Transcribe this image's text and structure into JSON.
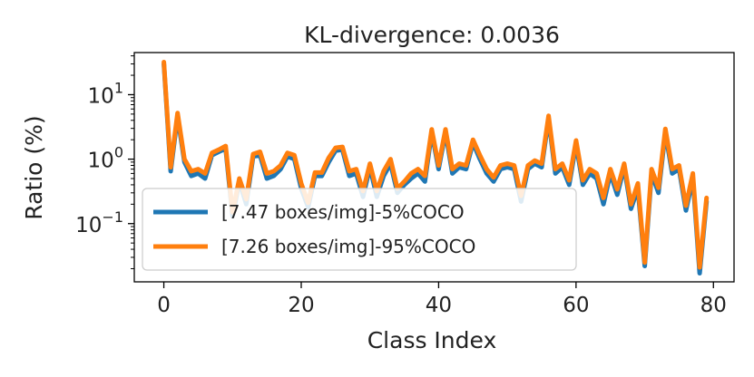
{
  "chart_data": {
    "type": "line",
    "title": "KL-divergence: 0.0036",
    "xlabel": "Class Index",
    "ylabel": "Ratio (%)",
    "xlim": [
      -4.3,
      83
    ],
    "ylim": [
      0.0125,
      45
    ],
    "yscale": "log",
    "grid": false,
    "legend_position": "lower-left",
    "xticks": [
      0,
      20,
      40,
      60,
      80
    ],
    "xtick_labels": [
      "0",
      "20",
      "40",
      "60",
      "80"
    ],
    "yticks": [
      0.1,
      1,
      10
    ],
    "ytick_labels": [
      {
        "base": "10",
        "exp": "−1"
      },
      {
        "base": "10",
        "exp": "0"
      },
      {
        "base": "10",
        "exp": "1"
      }
    ],
    "x": [
      0,
      1,
      2,
      3,
      4,
      5,
      6,
      7,
      8,
      9,
      10,
      11,
      12,
      13,
      14,
      15,
      16,
      17,
      18,
      19,
      20,
      21,
      22,
      23,
      24,
      25,
      26,
      27,
      28,
      29,
      30,
      31,
      32,
      33,
      34,
      35,
      36,
      37,
      38,
      39,
      40,
      41,
      42,
      43,
      44,
      45,
      46,
      47,
      48,
      49,
      50,
      51,
      52,
      53,
      54,
      55,
      56,
      57,
      58,
      59,
      60,
      61,
      62,
      63,
      64,
      65,
      66,
      67,
      68,
      69,
      70,
      71,
      72,
      73,
      74,
      75,
      76,
      77,
      78,
      79
    ],
    "series": [
      {
        "name": "[7.47 boxes/img]-5%COCO",
        "color": "#1f77b4",
        "values": [
          30,
          0.65,
          4.6,
          0.9,
          0.55,
          0.6,
          0.5,
          1.15,
          1.3,
          1.45,
          0.13,
          0.45,
          0.2,
          1.1,
          1.15,
          0.5,
          0.55,
          0.7,
          1.1,
          1.0,
          0.35,
          0.18,
          0.55,
          0.55,
          0.9,
          1.35,
          1.4,
          0.55,
          0.6,
          0.26,
          0.75,
          0.26,
          0.55,
          0.85,
          0.3,
          0.4,
          0.5,
          0.6,
          0.45,
          2.6,
          0.7,
          2.6,
          0.6,
          0.75,
          0.7,
          1.8,
          1.0,
          0.6,
          0.45,
          0.7,
          0.75,
          0.7,
          0.22,
          0.7,
          0.85,
          0.75,
          4.2,
          0.6,
          0.75,
          0.4,
          1.7,
          0.4,
          0.6,
          0.5,
          0.2,
          0.6,
          0.28,
          0.75,
          0.17,
          0.35,
          0.022,
          0.6,
          0.3,
          2.6,
          0.6,
          0.7,
          0.16,
          0.5,
          0.017,
          0.22
        ]
      },
      {
        "name": "[7.26 boxes/img]-95%COCO",
        "color": "#ff7f0e",
        "values": [
          32,
          0.75,
          5.2,
          1.0,
          0.65,
          0.7,
          0.6,
          1.25,
          1.4,
          1.6,
          0.15,
          0.5,
          0.24,
          1.2,
          1.3,
          0.6,
          0.65,
          0.8,
          1.25,
          1.15,
          0.42,
          0.21,
          0.62,
          0.62,
          1.05,
          1.5,
          1.55,
          0.65,
          0.7,
          0.32,
          0.85,
          0.32,
          0.65,
          1.0,
          0.35,
          0.45,
          0.6,
          0.7,
          0.55,
          2.9,
          0.8,
          2.9,
          0.7,
          0.85,
          0.8,
          2.0,
          1.15,
          0.7,
          0.52,
          0.8,
          0.85,
          0.8,
          0.27,
          0.8,
          0.95,
          0.85,
          4.7,
          0.7,
          0.85,
          0.47,
          1.95,
          0.47,
          0.7,
          0.6,
          0.25,
          0.7,
          0.34,
          0.85,
          0.2,
          0.42,
          0.025,
          0.7,
          0.36,
          2.95,
          0.7,
          0.8,
          0.19,
          0.6,
          0.021,
          0.25
        ]
      }
    ]
  }
}
